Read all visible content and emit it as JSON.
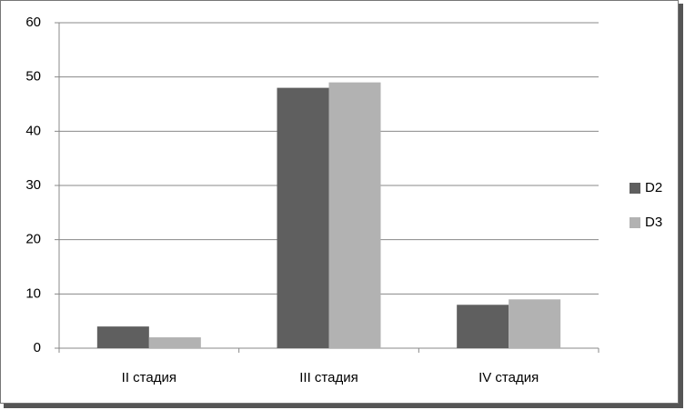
{
  "chart_data": {
    "type": "bar",
    "categories": [
      "II стадия",
      "III стадия",
      "IV стадия"
    ],
    "series": [
      {
        "name": "D2",
        "color": "#5f5f5f",
        "values": [
          4,
          48,
          8
        ]
      },
      {
        "name": "D3",
        "color": "#b2b2b2",
        "values": [
          2,
          49,
          9
        ]
      }
    ],
    "ylim": [
      0,
      60
    ],
    "yticks": [
      0,
      10,
      20,
      30,
      40,
      50,
      60
    ],
    "grid": true,
    "legend": "right"
  }
}
